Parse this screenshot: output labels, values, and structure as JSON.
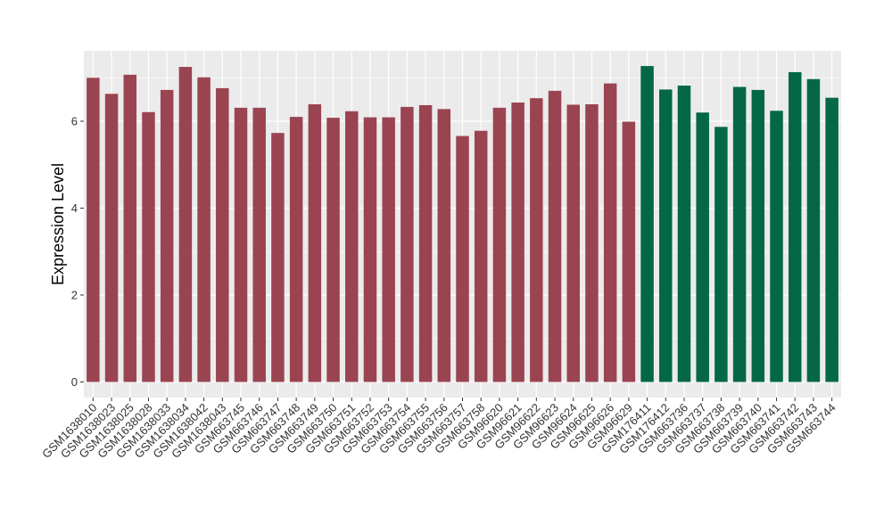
{
  "chart_data": {
    "type": "bar",
    "ylabel": "Expression Level",
    "xlabel": "",
    "ylim": [
      0,
      7.6
    ],
    "yticks": [
      0,
      2,
      4,
      6
    ],
    "grid": true,
    "categories": [
      "GSM1638010",
      "GSM1638023",
      "GSM1638025",
      "GSM1638028",
      "GSM1638033",
      "GSM1638034",
      "GSM1638042",
      "GSM1638043",
      "GSM663745",
      "GSM663746",
      "GSM663747",
      "GSM663748",
      "GSM663749",
      "GSM663750",
      "GSM663751",
      "GSM663752",
      "GSM663753",
      "GSM663754",
      "GSM663755",
      "GSM663756",
      "GSM663757",
      "GSM663758",
      "GSM96620",
      "GSM96621",
      "GSM96622",
      "GSM96623",
      "GSM96624",
      "GSM96625",
      "GSM96626",
      "GSM96629",
      "GSM176411",
      "GSM176412",
      "GSM663736",
      "GSM663737",
      "GSM663738",
      "GSM663739",
      "GSM663740",
      "GSM663741",
      "GSM663742",
      "GSM663743",
      "GSM663744"
    ],
    "values": [
      7.0,
      6.63,
      7.07,
      6.21,
      6.72,
      7.25,
      7.01,
      6.76,
      6.31,
      6.31,
      5.73,
      6.1,
      6.39,
      6.08,
      6.23,
      6.09,
      6.09,
      6.33,
      6.37,
      6.28,
      5.66,
      5.78,
      6.31,
      6.43,
      6.53,
      6.7,
      6.38,
      6.39,
      6.87,
      5.99,
      7.27,
      6.73,
      6.82,
      6.2,
      5.87,
      6.79,
      6.72,
      6.24,
      7.13,
      6.97,
      6.54
    ],
    "groups": [
      0,
      0,
      0,
      0,
      0,
      0,
      0,
      0,
      0,
      0,
      0,
      0,
      0,
      0,
      0,
      0,
      0,
      0,
      0,
      0,
      0,
      0,
      0,
      0,
      0,
      0,
      0,
      0,
      0,
      0,
      1,
      1,
      1,
      1,
      1,
      1,
      1,
      1,
      1,
      1,
      1
    ],
    "colors": {
      "group0": "#9b4451",
      "group1": "#046845",
      "panel": "#ebebeb",
      "grid": "#ffffff"
    }
  }
}
